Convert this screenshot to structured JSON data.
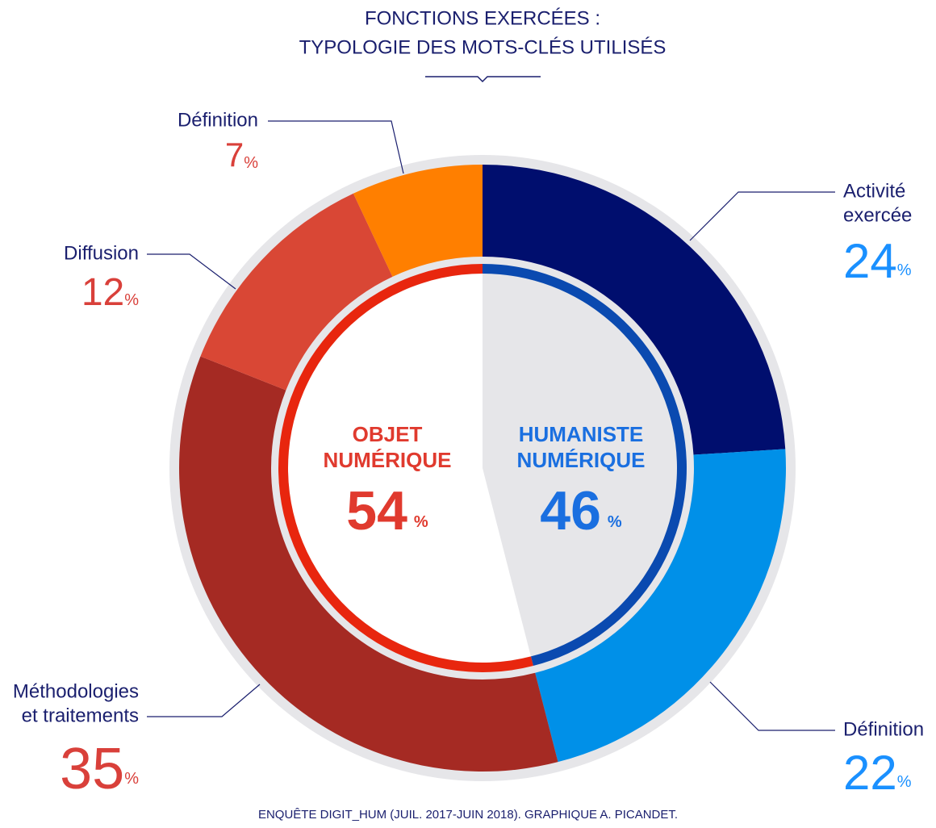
{
  "chart_data": {
    "type": "donut",
    "title": [
      "FONCTIONS EXERCÉES :",
      "TYPOLOGIE DES MOTS-CLÉS UTILISÉS"
    ],
    "categories": [
      [
        "Activité",
        "exercée"
      ],
      [
        "Définition"
      ],
      [
        "Méthodologies",
        "et traitements"
      ],
      [
        "Diffusion"
      ],
      [
        "Définition"
      ]
    ],
    "values": [
      24,
      22,
      35,
      12,
      7
    ],
    "colors": [
      "#000e6e",
      "#0090e8",
      "#a52a23",
      "#d94735",
      "#ff7f00"
    ],
    "unit": "%",
    "groups": [
      {
        "name": [
          "HUMANISTE",
          "NUMÉRIQUE"
        ],
        "value": 46,
        "color": "#1a6fe0",
        "ring_color": "#0a4ab0",
        "fill": "#e6e6e9"
      },
      {
        "name": [
          "OBJET",
          "NUMÉRIQUE"
        ],
        "value": 54,
        "color": "#e03a2e",
        "ring_color": "#e8260e",
        "fill": "#ffffff"
      }
    ],
    "source": "ENQUÊTE DIGIT_HUM (JUIL. 2017-JUIN 2018). GRAPHIQUE A. PICANDET."
  }
}
